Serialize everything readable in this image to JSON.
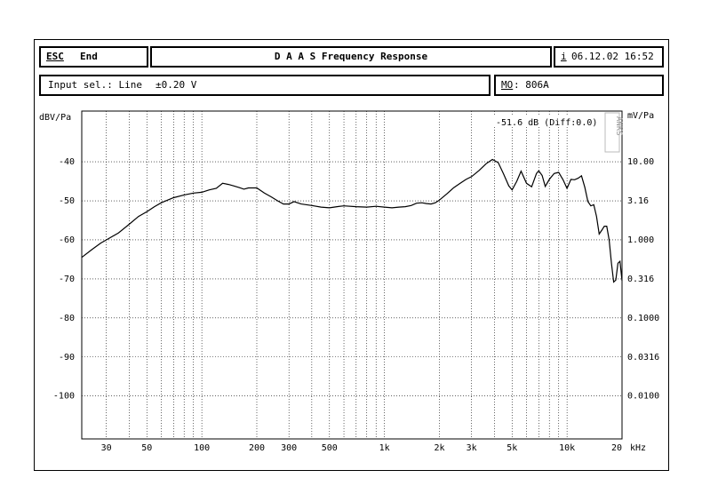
{
  "header": {
    "esc_key": "ESC",
    "esc_label": "End",
    "title": "D A A S  Frequency Response",
    "info_key": "i",
    "datetime": "06.12.02 16:52"
  },
  "subheader": {
    "input_label": "Input sel.: Line",
    "input_range": "±0.20 V",
    "mo_key": "MO",
    "mo_value": ": 806A"
  },
  "chart_data": {
    "type": "line",
    "ylabel": "dBV/Pa",
    "ylabel_right": "mV/Pa",
    "xlabel_unit": "kHz",
    "x_scale": "log",
    "xlim": [
      22,
      20000
    ],
    "ylim": [
      -111,
      -27
    ],
    "grid": true,
    "y_ticks": [
      -40,
      -50,
      -60,
      -70,
      -80,
      -90,
      -100
    ],
    "y_ticks_right": [
      {
        "db": -40,
        "label": "10.00"
      },
      {
        "db": -50,
        "label": "3.16"
      },
      {
        "db": -60,
        "label": "1.000"
      },
      {
        "db": -70,
        "label": "0.316"
      },
      {
        "db": -80,
        "label": "0.1000"
      },
      {
        "db": -90,
        "label": "0.0316"
      },
      {
        "db": -100,
        "label": "0.0100"
      }
    ],
    "x_ticks": [
      {
        "f": 30,
        "label": "30"
      },
      {
        "f": 50,
        "label": "50"
      },
      {
        "f": 100,
        "label": "100"
      },
      {
        "f": 200,
        "label": "200"
      },
      {
        "f": 300,
        "label": "300"
      },
      {
        "f": 500,
        "label": "500"
      },
      {
        "f": 1000,
        "label": "1k"
      },
      {
        "f": 2000,
        "label": "2k"
      },
      {
        "f": 3000,
        "label": "3k"
      },
      {
        "f": 5000,
        "label": "5k"
      },
      {
        "f": 10000,
        "label": "10k"
      },
      {
        "f": 20000,
        "label": "20"
      }
    ],
    "annotation": "-51.6 dB (Diff:0.0)",
    "badge": "ANKS",
    "series": [
      {
        "color": "#000000",
        "x": [
          22,
          25,
          28,
          30,
          35,
          40,
          45,
          50,
          55,
          60,
          70,
          80,
          90,
          100,
          110,
          120,
          130,
          140,
          150,
          160,
          170,
          180,
          200,
          220,
          240,
          260,
          280,
          300,
          320,
          350,
          400,
          450,
          500,
          550,
          600,
          700,
          800,
          900,
          1000,
          1100,
          1200,
          1300,
          1400,
          1500,
          1600,
          1700,
          1800,
          1900,
          2000,
          2200,
          2400,
          2600,
          2800,
          3000,
          3300,
          3600,
          3900,
          4200,
          4500,
          4800,
          5000,
          5300,
          5600,
          6000,
          6400,
          6800,
          7000,
          7300,
          7600,
          8000,
          8500,
          9000,
          9500,
          10000,
          10500,
          11000,
          11500,
          12000,
          12500,
          13000,
          13500,
          14000,
          14500,
          15000,
          15500,
          16000,
          16500,
          17000,
          17500,
          18000,
          18500,
          19000,
          19500,
          20000
        ],
        "y": [
          -64.5,
          -62.5,
          -60.8,
          -60,
          -58.2,
          -56,
          -54,
          -52.8,
          -51.5,
          -50.5,
          -49.2,
          -48.5,
          -48,
          -47.8,
          -47.2,
          -46.8,
          -45.5,
          -45.8,
          -46.2,
          -46.6,
          -47,
          -46.7,
          -46.7,
          -48,
          -49,
          -50,
          -50.8,
          -50.8,
          -50.2,
          -50.8,
          -51.2,
          -51.6,
          -51.8,
          -51.5,
          -51.3,
          -51.5,
          -51.6,
          -51.4,
          -51.6,
          -51.8,
          -51.6,
          -51.5,
          -51.2,
          -50.6,
          -50.5,
          -50.7,
          -50.8,
          -50.5,
          -49.8,
          -48.2,
          -46.6,
          -45.5,
          -44.5,
          -43.8,
          -42.2,
          -40.5,
          -39.4,
          -40.2,
          -43.2,
          -46.2,
          -47.2,
          -45,
          -42.4,
          -45.5,
          -46.4,
          -43,
          -42.3,
          -43.5,
          -46.3,
          -44.5,
          -43,
          -42.7,
          -44.6,
          -46.8,
          -44.5,
          -44.6,
          -44.2,
          -43.6,
          -46.5,
          -50.2,
          -51.3,
          -51,
          -54,
          -58.5,
          -57.5,
          -56.5,
          -56.5,
          -60,
          -66,
          -70.8,
          -70.3,
          -66,
          -65.5,
          -70.5
        ]
      }
    ]
  }
}
